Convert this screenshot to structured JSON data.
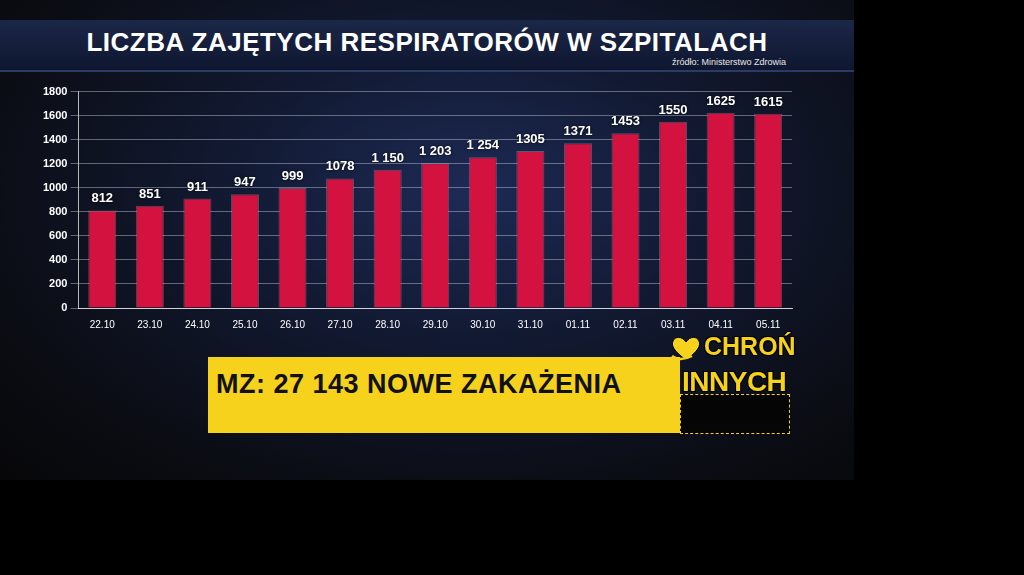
{
  "chart_data": {
    "type": "bar",
    "title": "LICZBA ZAJĘTYCH RESPIRATORÓW W SZPITALACH",
    "source": "źródło: Ministerstwo Zdrowia",
    "categories": [
      "22.10",
      "23.10",
      "24.10",
      "25.10",
      "26.10",
      "27.10",
      "28.10",
      "29.10",
      "30.10",
      "31.10",
      "01.11",
      "02.11",
      "03.11",
      "04.11",
      "05.11"
    ],
    "values": [
      812,
      851,
      911,
      947,
      999,
      1078,
      1150,
      1203,
      1254,
      1305,
      1371,
      1453,
      1550,
      1625,
      1615
    ],
    "value_labels": [
      "812",
      "851",
      "911",
      "947",
      "999",
      "1078",
      "1 150",
      "1 203",
      "1 254",
      "1305",
      "1371",
      "1453",
      "1550",
      "1625",
      "1615"
    ],
    "color": "#d3123f",
    "ylim": [
      0,
      1800
    ],
    "yticks": [
      0,
      200,
      400,
      600,
      800,
      1000,
      1200,
      1400,
      1600,
      1800
    ],
    "grid": true,
    "data_labels": true
  },
  "banner": {
    "text": "MZ: 27 143 NOWE ZAKAŻENIA"
  },
  "logo": {
    "lines": [
      "CHROŃ",
      "INNYCH"
    ]
  }
}
